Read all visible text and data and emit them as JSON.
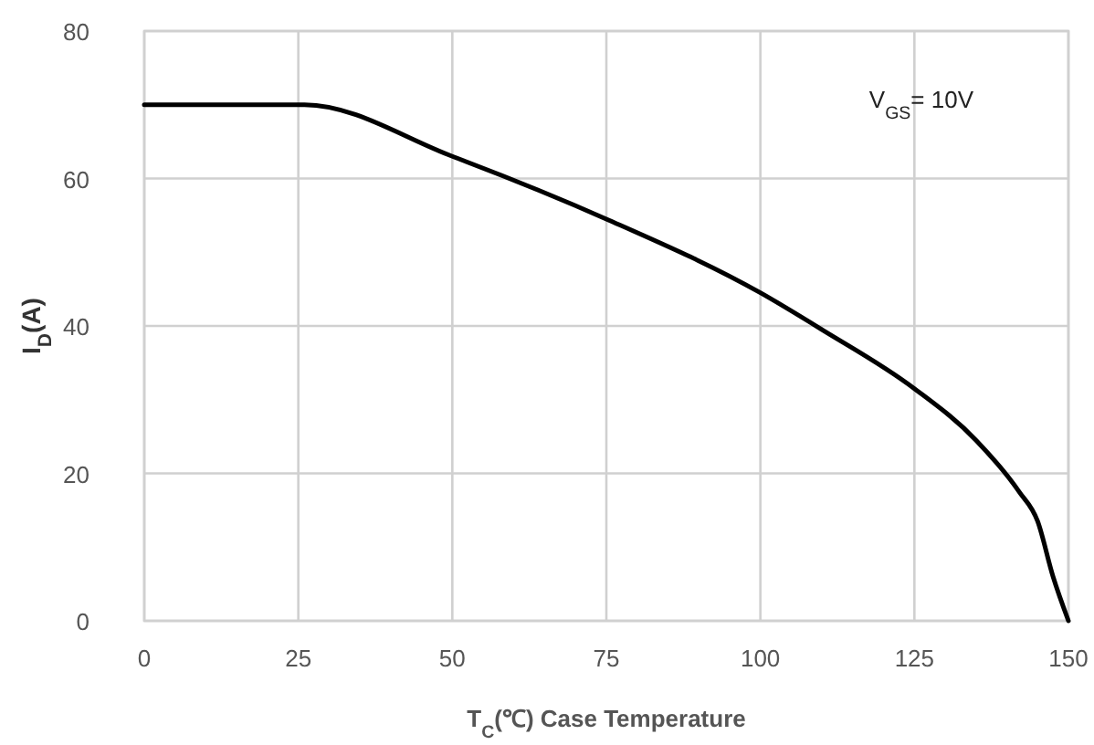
{
  "chart_data": {
    "type": "line",
    "xlabel": "T$_{C}$(℃) Case Temperature",
    "ylabel": "I$_{D}$(A)",
    "annotations": [
      "V$_{GS}$= 10V"
    ],
    "x": [
      0,
      26,
      50,
      75,
      100,
      110,
      125,
      135,
      142,
      145,
      147.5,
      150
    ],
    "series": [
      {
        "color": "#000000",
        "values": [
          70,
          70,
          63,
          54.5,
          44.5,
          39.5,
          31.5,
          24.5,
          17.5,
          13.5,
          6,
          0
        ]
      }
    ],
    "xlim": [
      0,
      150
    ],
    "xticks": [
      0,
      25,
      50,
      75,
      100,
      125,
      150
    ],
    "ylim": [
      0,
      80
    ],
    "yticks": [
      0,
      20,
      40,
      60,
      80
    ],
    "grid": true,
    "marker": "none",
    "line_style": "solid"
  }
}
